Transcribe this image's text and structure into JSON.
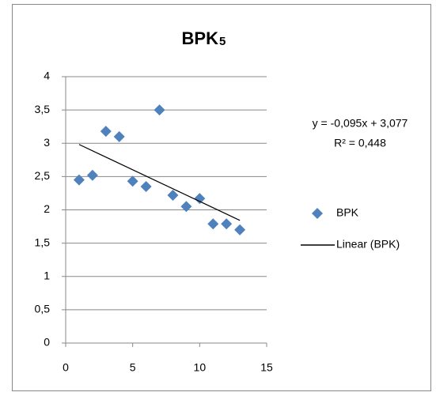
{
  "chart_data": {
    "type": "scatter",
    "title": "BPK",
    "title_subscript": "5",
    "x": [
      1,
      2,
      3,
      4,
      5,
      6,
      7,
      8,
      9,
      10,
      11,
      12,
      13
    ],
    "series": [
      {
        "name": "BPK",
        "color": "#4f81bd",
        "values": [
          2.45,
          2.52,
          3.18,
          3.1,
          2.43,
          2.35,
          3.5,
          2.22,
          2.05,
          2.17,
          1.79,
          1.79,
          1.7
        ]
      }
    ],
    "trendline": {
      "name": "Linear (BPK)",
      "color": "#000000",
      "x": [
        1,
        13
      ],
      "values": [
        2.982,
        1.842
      ],
      "equation": "y = -0,095x + 3,077",
      "r_squared": "R² = 0,448"
    },
    "xlim": [
      0,
      15
    ],
    "xticks": [
      0,
      5,
      10,
      15
    ],
    "ylim": [
      0,
      4
    ],
    "yticks": [
      0,
      {
        "value": 0.5,
        "label": "0,5"
      },
      1,
      {
        "value": 1.5,
        "label": "1,5"
      },
      2,
      {
        "value": 2.5,
        "label": "2,5"
      },
      3,
      {
        "value": 3.5,
        "label": "3,5"
      },
      4
    ],
    "grid": true,
    "legend": "right"
  }
}
